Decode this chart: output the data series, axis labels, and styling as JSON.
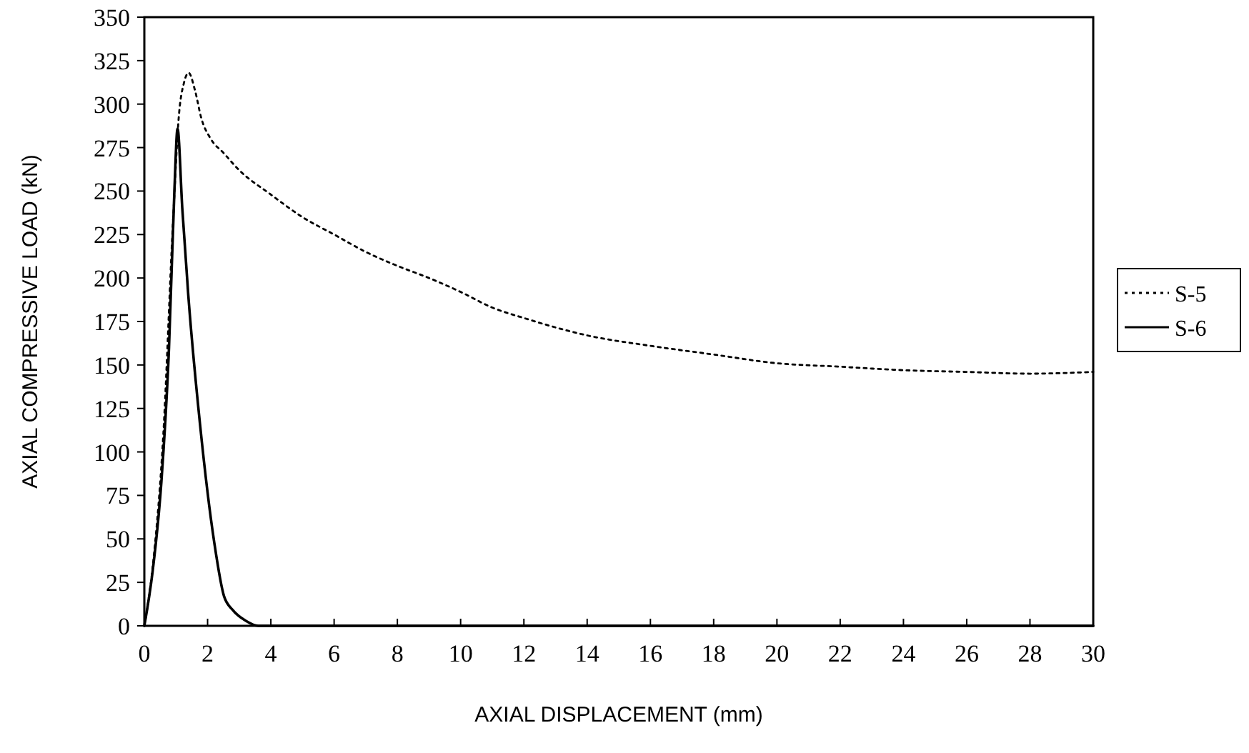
{
  "chart_data": {
    "type": "line",
    "xlabel": "AXIAL DISPLACEMENT (mm)",
    "ylabel": "AXIAL COMPRESSIVE LOAD (kN)",
    "xlim": [
      0,
      30
    ],
    "xticks": [
      0,
      2,
      4,
      6,
      8,
      10,
      12,
      14,
      16,
      18,
      20,
      22,
      24,
      26,
      28,
      30
    ],
    "ylim": [
      0,
      350
    ],
    "yticks": [
      0,
      25,
      50,
      75,
      100,
      125,
      150,
      175,
      200,
      225,
      250,
      275,
      300,
      325,
      350
    ],
    "grid": false,
    "legend": "right",
    "marker": "none",
    "series": [
      {
        "name": "S-5",
        "color": "#000000",
        "line_style": "dotted",
        "x": [
          0,
          0.3,
          0.6,
          0.9,
          1.1,
          1.25,
          1.4,
          1.6,
          1.8,
          2.1,
          2.5,
          3,
          4,
          5,
          6,
          7,
          8,
          9,
          10,
          11,
          12,
          14,
          16,
          18,
          20,
          22,
          24,
          26,
          28,
          30
        ],
        "values": [
          0,
          40,
          110,
          230,
          295,
          312,
          318,
          308,
          292,
          280,
          272,
          262,
          248,
          235,
          225,
          215,
          207,
          200,
          192,
          183,
          177,
          167,
          161,
          156,
          151,
          149,
          147,
          146,
          145,
          146
        ]
      },
      {
        "name": "S-6",
        "color": "#000000",
        "line_style": "solid",
        "x": [
          0,
          0.26,
          0.54,
          0.78,
          0.95,
          1.05,
          1.2,
          1.39,
          1.76,
          2.21,
          2.52,
          2.8,
          3.2,
          3.6,
          4,
          10,
          20,
          30
        ],
        "values": [
          0,
          31,
          83,
          160,
          250,
          286,
          240,
          190,
          116,
          48,
          17,
          9,
          3,
          0,
          0,
          0,
          0,
          0
        ]
      }
    ]
  }
}
